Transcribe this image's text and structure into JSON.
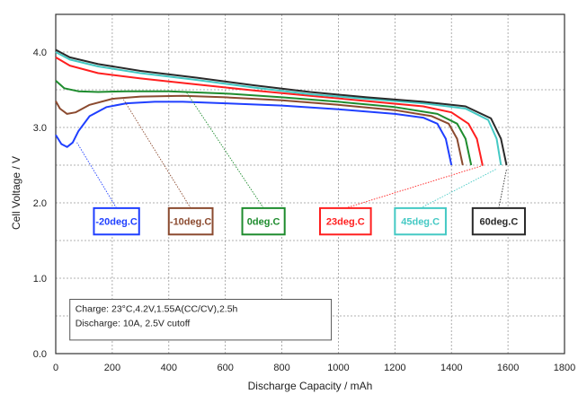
{
  "chart_data": {
    "type": "line",
    "xlabel": "Discharge Capacity / mAh",
    "ylabel": "Cell Voltage / V",
    "xlim": [
      0,
      1800
    ],
    "ylim": [
      0.0,
      4.5
    ],
    "xticks": [
      "0",
      "200",
      "400",
      "600",
      "800",
      "1000",
      "1200",
      "1400",
      "1600",
      "1800"
    ],
    "yticks": [
      "0.0",
      "1.0",
      "2.0",
      "3.0",
      "4.0"
    ],
    "grid": true,
    "legend_placement": "callout boxes along y=1.8 with leader lines to curve ends",
    "series": [
      {
        "name": "-20deg.C",
        "color": "#1f3fff",
        "x": [
          0,
          20,
          40,
          60,
          80,
          120,
          180,
          250,
          350,
          450,
          600,
          800,
          1000,
          1200,
          1300,
          1350,
          1380,
          1400
        ],
        "y": [
          2.9,
          2.78,
          2.74,
          2.8,
          2.95,
          3.15,
          3.27,
          3.32,
          3.34,
          3.34,
          3.32,
          3.29,
          3.24,
          3.18,
          3.13,
          3.05,
          2.85,
          2.5
        ]
      },
      {
        "name": "-10deg.C",
        "color": "#8b4a2f",
        "x": [
          0,
          15,
          40,
          70,
          120,
          200,
          300,
          450,
          600,
          800,
          1000,
          1200,
          1330,
          1390,
          1420,
          1440
        ],
        "y": [
          3.35,
          3.25,
          3.18,
          3.2,
          3.3,
          3.38,
          3.41,
          3.42,
          3.4,
          3.36,
          3.3,
          3.23,
          3.15,
          3.05,
          2.85,
          2.5
        ]
      },
      {
        "name": "0deg.C",
        "color": "#1e8c2e",
        "x": [
          0,
          30,
          80,
          150,
          250,
          400,
          600,
          800,
          1000,
          1200,
          1350,
          1420,
          1450,
          1470
        ],
        "y": [
          3.62,
          3.52,
          3.48,
          3.47,
          3.48,
          3.48,
          3.45,
          3.4,
          3.34,
          3.27,
          3.18,
          3.05,
          2.85,
          2.5
        ]
      },
      {
        "name": "23deg.C",
        "color": "#ff1f1f",
        "x": [
          0,
          50,
          150,
          300,
          500,
          700,
          900,
          1100,
          1300,
          1400,
          1460,
          1490,
          1510
        ],
        "y": [
          3.93,
          3.82,
          3.72,
          3.65,
          3.57,
          3.49,
          3.42,
          3.35,
          3.28,
          3.2,
          3.05,
          2.85,
          2.5
        ]
      },
      {
        "name": "45deg.C",
        "color": "#44c9c4",
        "x": [
          0,
          50,
          150,
          300,
          500,
          700,
          900,
          1100,
          1300,
          1450,
          1530,
          1560,
          1575
        ],
        "y": [
          4.0,
          3.9,
          3.81,
          3.72,
          3.63,
          3.53,
          3.44,
          3.38,
          3.32,
          3.25,
          3.1,
          2.85,
          2.5
        ]
      },
      {
        "name": "60deg.C",
        "color": "#2a2a2a",
        "x": [
          0,
          50,
          150,
          300,
          500,
          700,
          900,
          1100,
          1300,
          1450,
          1540,
          1575,
          1595
        ],
        "y": [
          4.03,
          3.93,
          3.84,
          3.75,
          3.66,
          3.56,
          3.47,
          3.4,
          3.34,
          3.28,
          3.12,
          2.85,
          2.5
        ]
      }
    ],
    "legend_boxes": [
      {
        "label": "-20deg.C",
        "color": "#1f3fff",
        "x0": 135,
        "x1": 295,
        "target": [
          75,
          2.8
        ]
      },
      {
        "label": "-10deg.C",
        "color": "#8b4a2f",
        "x0": 400,
        "x1": 555,
        "target": [
          240,
          3.37
        ]
      },
      {
        "label": "0deg.C",
        "color": "#1e8c2e",
        "x0": 660,
        "x1": 810,
        "target": [
          460,
          3.48
        ]
      },
      {
        "label": "23deg.C",
        "color": "#ff1f1f",
        "x0": 935,
        "x1": 1115,
        "target": [
          1515,
          2.5
        ]
      },
      {
        "label": "45deg.C",
        "color": "#44c9c4",
        "x0": 1200,
        "x1": 1380,
        "target": [
          1560,
          2.45
        ]
      },
      {
        "label": "60deg.C",
        "color": "#2a2a2a",
        "x0": 1475,
        "x1": 1660,
        "target": [
          1595,
          2.45
        ]
      }
    ],
    "annotation": {
      "lines": [
        "Charge: 23°C,4.2V,1.55A(CC/CV),2.5h",
        "Discharge: 10A, 2.5V cutoff"
      ],
      "x0": 50,
      "x1": 975,
      "y0": 0.72,
      "y1": 0.18
    }
  }
}
